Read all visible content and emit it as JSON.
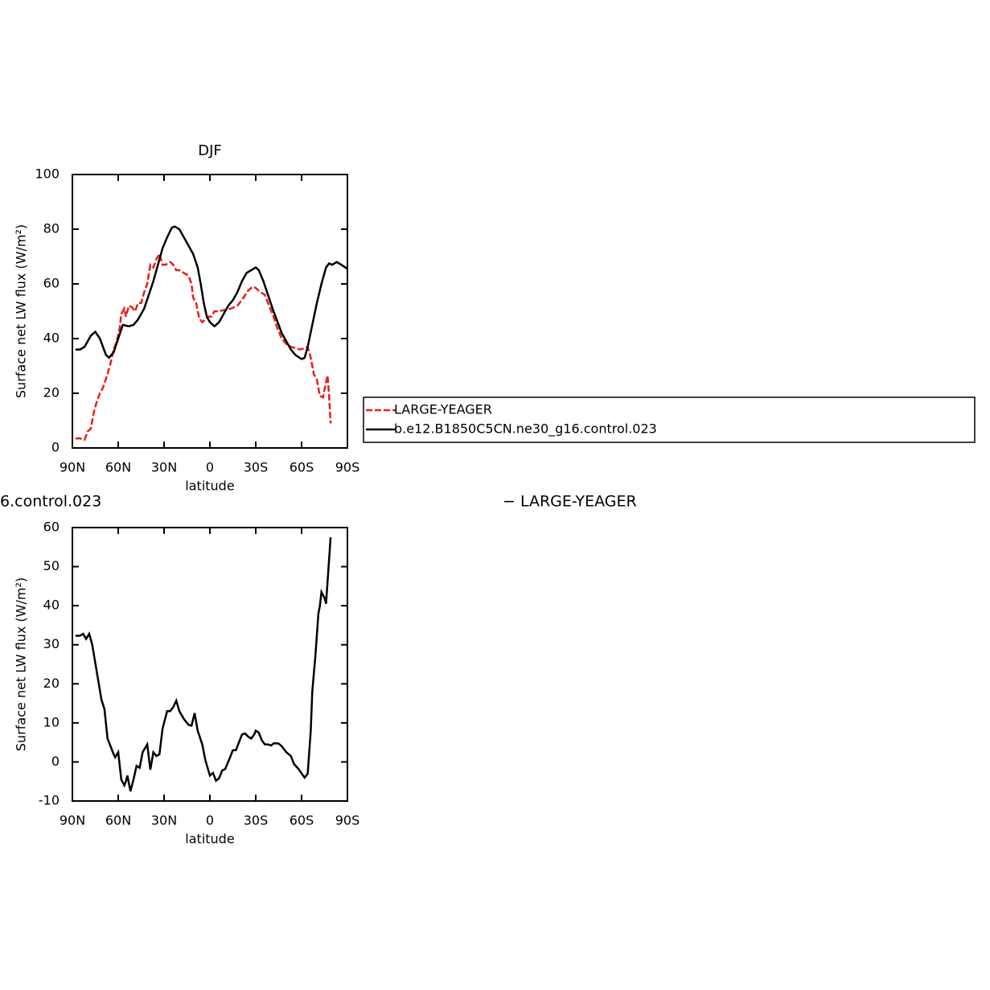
{
  "chart_data": [
    {
      "type": "line",
      "title": "DJF",
      "xlabel": "latitude",
      "ylabel": "Surface net LW flux (W/m²)",
      "xlim": [
        90,
        -90
      ],
      "ylim": [
        0,
        100
      ],
      "xticks": [
        {
          "value": 90,
          "label": "90N"
        },
        {
          "value": 60,
          "label": "60N"
        },
        {
          "value": 30,
          "label": "30N"
        },
        0,
        {
          "value": -30,
          "label": "30S"
        },
        {
          "value": -60,
          "label": "60S"
        },
        {
          "value": -90,
          "label": "90S"
        }
      ],
      "yticks": [
        0,
        20,
        40,
        60,
        80,
        100
      ],
      "series": [
        {
          "name": "LARGE-YEAGER",
          "color": "#e8201c",
          "dashed": true,
          "x": [
            88,
            85,
            82,
            80,
            78,
            76,
            74,
            72,
            70,
            67,
            65,
            63,
            61,
            59,
            58,
            56,
            55,
            53,
            51,
            49,
            47,
            45,
            43,
            41,
            39,
            37,
            35,
            33,
            31,
            29,
            26,
            24,
            22,
            20,
            17,
            14,
            12,
            11,
            9,
            7,
            5,
            3,
            1,
            -1,
            -3,
            -6,
            -10,
            -14,
            -18,
            -22,
            -25,
            -28,
            -30,
            -33,
            -36,
            -38,
            -41,
            -44,
            -47,
            -50,
            -53,
            -56,
            -59,
            -62,
            -64,
            -66,
            -68,
            -70,
            -72,
            -74,
            -76,
            -77,
            -78,
            -79
          ],
          "values": [
            3.5,
            3.5,
            3,
            6,
            7,
            13,
            17,
            20,
            22,
            27,
            31,
            36,
            39,
            44,
            49,
            51,
            48,
            52,
            51.5,
            50,
            53,
            53,
            57,
            60,
            67,
            66,
            69,
            71,
            67,
            67,
            68,
            67,
            65,
            65,
            64,
            63,
            60,
            55,
            53,
            47.5,
            46,
            47,
            48,
            48,
            50,
            50,
            50.5,
            51,
            52,
            55,
            57.5,
            59,
            58.5,
            57,
            56,
            53,
            49,
            44,
            40,
            38,
            37,
            36.5,
            36,
            36.5,
            37,
            33,
            27,
            25,
            19,
            18.5,
            24,
            26.5,
            19,
            9
          ]
        },
        {
          "name": "b.e12.B1850C5CN.ne30_g16.control.023",
          "color": "#000000",
          "dashed": false,
          "x": [
            88,
            85,
            82,
            78,
            75,
            72,
            68,
            66,
            63,
            60,
            57,
            53,
            50,
            47,
            43,
            40,
            37,
            34,
            31,
            28,
            25,
            23,
            20,
            17,
            14,
            11,
            8,
            6,
            4,
            2,
            0,
            -3,
            -6,
            -9,
            -12,
            -15,
            -18,
            -21,
            -24,
            -27,
            -30,
            -32,
            -35,
            -38,
            -41,
            -44,
            -47,
            -50,
            -53,
            -56,
            -60,
            -62,
            -64,
            -67,
            -70,
            -73,
            -76,
            -78,
            -80,
            -83,
            -86,
            -90
          ],
          "values": [
            36,
            36,
            37,
            41,
            42.5,
            40,
            34,
            33,
            35,
            40,
            45,
            44.5,
            45,
            47,
            51,
            56,
            61,
            67,
            73,
            77,
            80.5,
            81,
            80,
            77,
            74,
            71,
            66,
            60,
            53,
            48,
            46,
            44.5,
            46,
            49,
            52,
            54,
            57,
            61,
            64,
            65,
            66,
            65,
            61,
            56,
            51,
            46.5,
            42,
            39,
            36,
            34,
            32.5,
            33,
            37,
            45,
            53,
            60,
            66,
            67.5,
            67,
            68,
            67,
            65.5
          ]
        }
      ]
    },
    {
      "type": "line",
      "title_left": "6.control.023",
      "title_right": "− LARGE-YEAGER",
      "xlabel": "latitude",
      "ylabel": "Surface net LW flux (W/m²)",
      "xlim": [
        90,
        -90
      ],
      "ylim": [
        -10,
        60
      ],
      "xticks": [
        {
          "value": 90,
          "label": "90N"
        },
        {
          "value": 60,
          "label": "60N"
        },
        {
          "value": 30,
          "label": "30N"
        },
        0,
        {
          "value": -30,
          "label": "30S"
        },
        {
          "value": -60,
          "label": "60S"
        },
        {
          "value": -90,
          "label": "90S"
        }
      ],
      "yticks": [
        -10,
        0,
        10,
        20,
        30,
        40,
        50,
        60
      ],
      "series": [
        {
          "color": "#000000",
          "dashed": false,
          "x": [
            88,
            85,
            83,
            81,
            79,
            77,
            74,
            71,
            69,
            67,
            65,
            63,
            62,
            60,
            58,
            56,
            55,
            54,
            52,
            50,
            48,
            46,
            44,
            41,
            39,
            37,
            35,
            33,
            31,
            28,
            26,
            24,
            22,
            20,
            17,
            14,
            12,
            10,
            8,
            5,
            3,
            0,
            -2,
            -4,
            -6,
            -8,
            -10,
            -13,
            -15,
            -17,
            -19,
            -21,
            -23,
            -25,
            -27,
            -29,
            -30,
            -32,
            -34,
            -36,
            -38,
            -40,
            -42,
            -45,
            -47,
            -50,
            -53,
            -55,
            -58,
            -61,
            -62,
            -64,
            -66,
            -67,
            -69,
            -71,
            -72,
            -73,
            -75,
            -76,
            -79
          ],
          "values": [
            32.3,
            32.3,
            32.8,
            31.5,
            32.8,
            30,
            23,
            16,
            13.5,
            6,
            4,
            2,
            1.2,
            2.5,
            -4.5,
            -6,
            -5,
            -3.5,
            -7.5,
            -4.5,
            -1,
            -1.5,
            2.5,
            4.5,
            -2,
            2.5,
            1.5,
            2,
            8.5,
            13,
            13,
            14,
            15.7,
            13,
            11,
            9.5,
            9.3,
            12.5,
            8,
            4.5,
            0.5,
            -3.5,
            -2.8,
            -4.8,
            -4.2,
            -2.2,
            -1.8,
            1,
            3,
            3,
            5,
            7,
            7.3,
            6.5,
            6,
            7,
            8,
            7.5,
            5.5,
            4.5,
            4.5,
            4.2,
            4.8,
            4.7,
            4,
            2.5,
            1.5,
            -0.5,
            -1.8,
            -3.5,
            -4,
            -3,
            8,
            18,
            27,
            38,
            40,
            43.5,
            42,
            40.5,
            57.5
          ]
        }
      ]
    }
  ]
}
